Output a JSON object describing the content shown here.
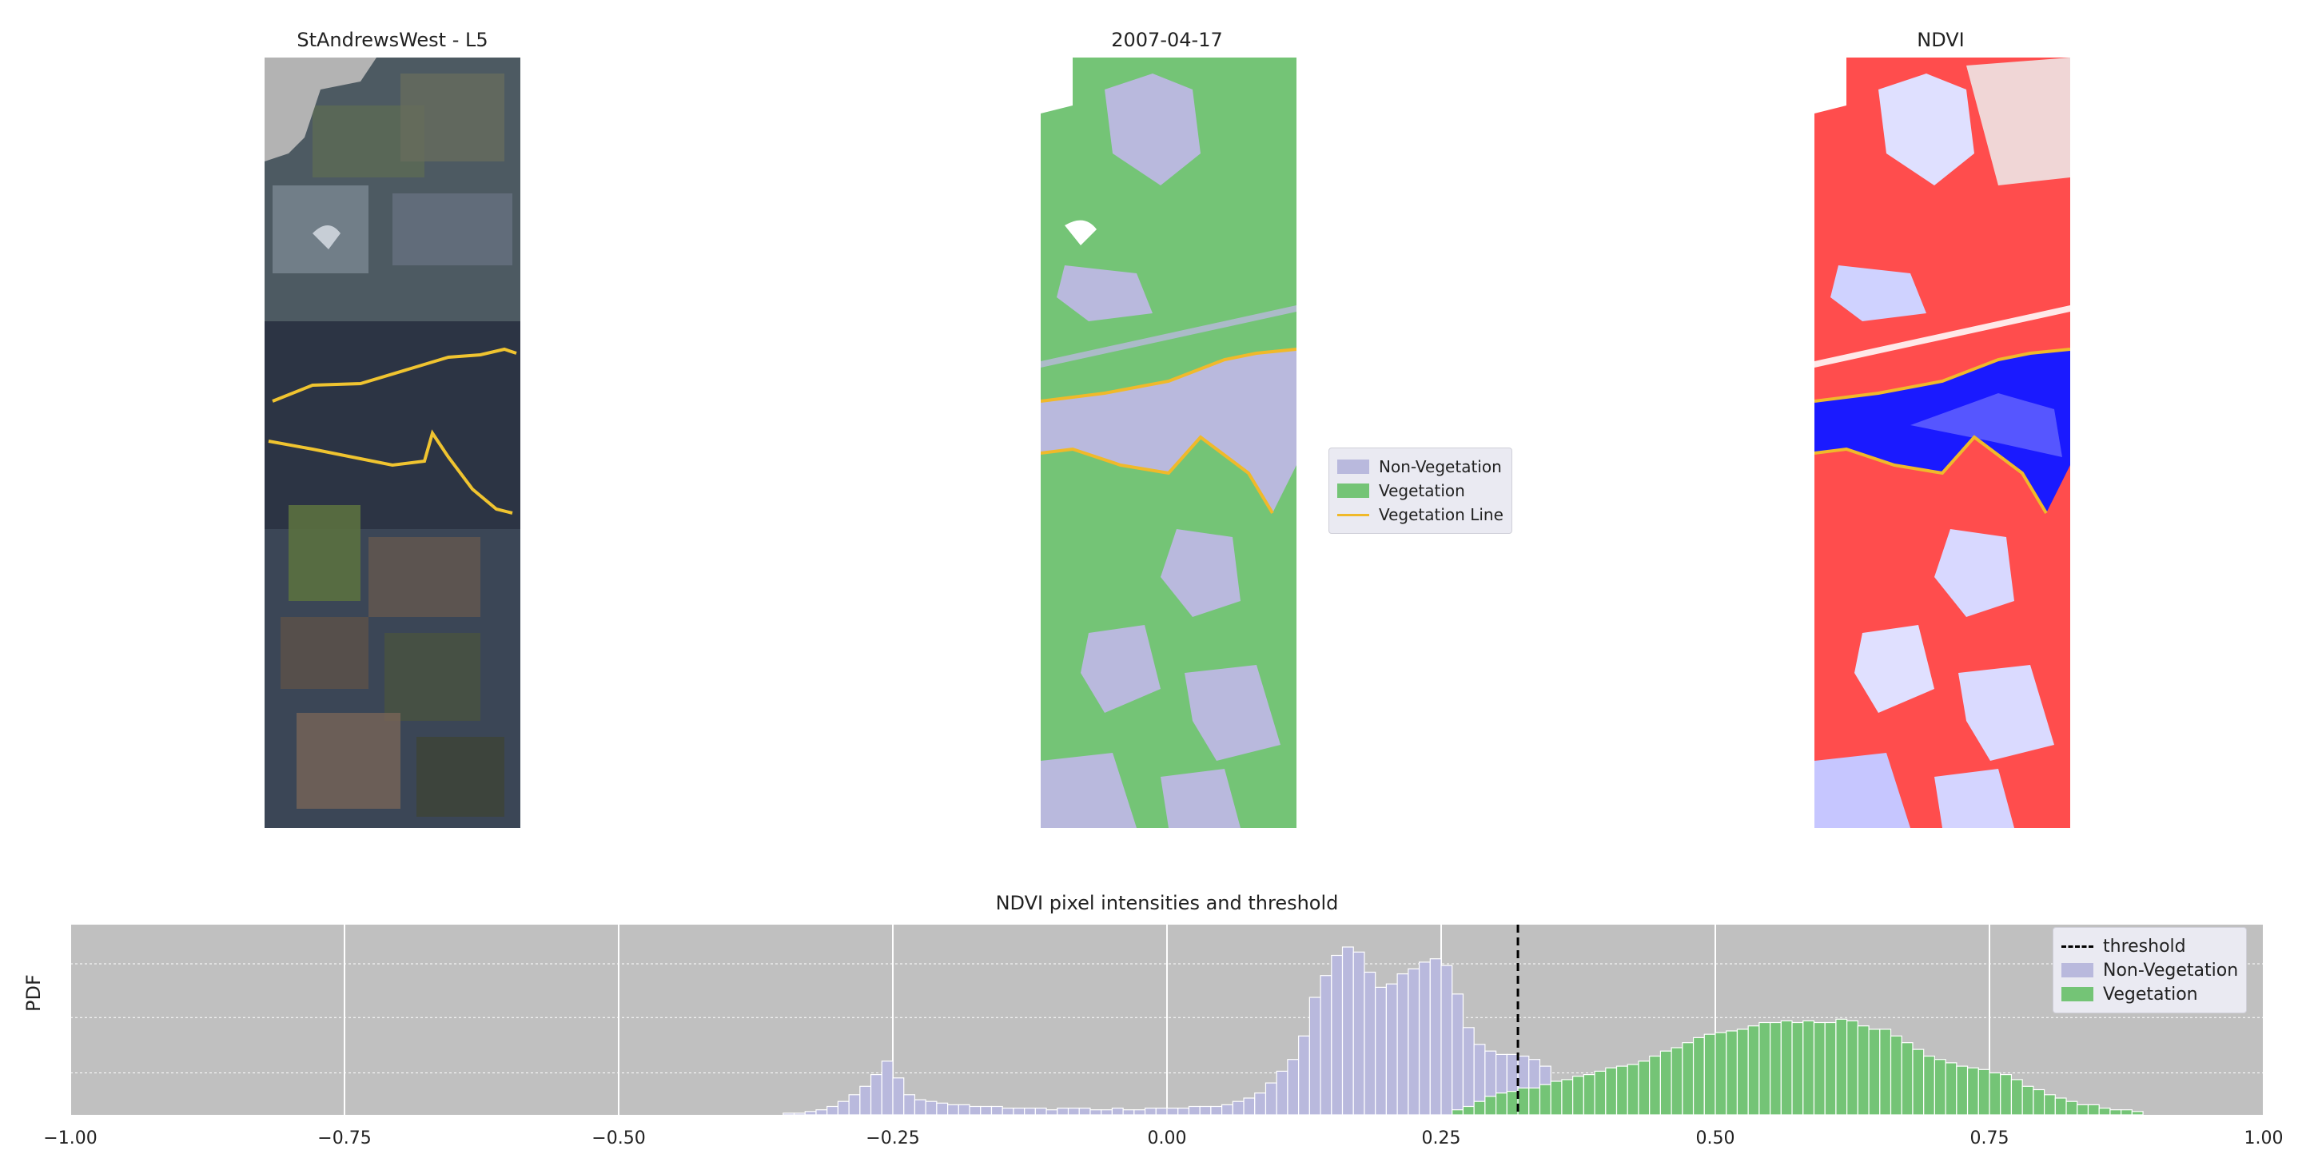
{
  "panels": {
    "rgb_title": "StAndrewsWest - L5",
    "class_title": "2007-04-17",
    "ndvi_title": "NDVI"
  },
  "class_legend": {
    "non_vegetation": "Non-Vegetation",
    "vegetation": "Vegetation",
    "vegetation_line": "Vegetation Line"
  },
  "colors": {
    "non_vegetation": "#b9b9dd",
    "vegetation": "#74c476",
    "vegetation_line": "#f0b92a",
    "threshold": "#000000",
    "hist_bg": "#c0c0c0"
  },
  "chart_data": {
    "type": "bar",
    "title": "NDVI pixel intensities and threshold",
    "xlabel": "",
    "ylabel": "PDF",
    "xlim": [
      -1.0,
      1.0
    ],
    "xticks": [
      "−1.00",
      "−0.75",
      "−0.50",
      "−0.25",
      "0.00",
      "0.25",
      "0.50",
      "0.75",
      "1.00"
    ],
    "threshold": 0.32,
    "grid": true,
    "legend_position": "top-right",
    "legend": [
      "threshold",
      "Non-Vegetation",
      "Vegetation"
    ],
    "series": [
      {
        "name": "Non-Vegetation",
        "bin_start": -0.35,
        "bin_width": 0.01,
        "values": [
          0.01,
          0.01,
          0.02,
          0.03,
          0.05,
          0.08,
          0.12,
          0.17,
          0.24,
          0.32,
          0.22,
          0.12,
          0.09,
          0.08,
          0.07,
          0.06,
          0.06,
          0.05,
          0.05,
          0.05,
          0.04,
          0.04,
          0.04,
          0.04,
          0.03,
          0.04,
          0.04,
          0.04,
          0.03,
          0.03,
          0.04,
          0.03,
          0.03,
          0.04,
          0.04,
          0.04,
          0.04,
          0.05,
          0.05,
          0.05,
          0.06,
          0.08,
          0.1,
          0.13,
          0.19,
          0.26,
          0.33,
          0.47,
          0.7,
          0.83,
          0.95,
          1.0,
          0.97,
          0.85,
          0.76,
          0.78,
          0.84,
          0.87,
          0.91,
          0.93,
          0.89,
          0.72,
          0.52,
          0.42,
          0.38,
          0.36,
          0.36,
          0.35,
          0.33,
          0.29,
          0.18,
          0.12,
          0.08,
          0.06,
          0.04,
          0.03,
          0.02,
          0.01,
          0.01,
          0.0,
          0.0,
          0.0,
          0.0,
          0.0,
          0.0,
          0.0,
          0.0,
          0.0,
          0.0,
          0.0,
          0.0,
          0.0,
          0.0,
          0.0,
          0.0,
          0.0,
          0.0,
          0.0,
          0.0,
          0.0,
          0.0,
          0.0,
          0.0,
          0.0,
          0.0,
          0.0,
          0.0,
          0.0,
          0.0,
          0.0,
          0.0,
          0.0,
          0.0,
          0.0,
          0.0,
          0.0,
          0.0
        ]
      },
      {
        "name": "Vegetation",
        "bin_start": 0.26,
        "bin_width": 0.01,
        "values": [
          0.03,
          0.05,
          0.08,
          0.11,
          0.13,
          0.14,
          0.16,
          0.16,
          0.18,
          0.2,
          0.21,
          0.23,
          0.24,
          0.26,
          0.28,
          0.29,
          0.3,
          0.32,
          0.35,
          0.38,
          0.4,
          0.43,
          0.46,
          0.48,
          0.49,
          0.5,
          0.51,
          0.53,
          0.55,
          0.55,
          0.56,
          0.55,
          0.56,
          0.55,
          0.55,
          0.57,
          0.56,
          0.53,
          0.51,
          0.51,
          0.47,
          0.43,
          0.39,
          0.35,
          0.33,
          0.31,
          0.29,
          0.28,
          0.27,
          0.25,
          0.24,
          0.21,
          0.17,
          0.15,
          0.12,
          0.1,
          0.08,
          0.06,
          0.06,
          0.04,
          0.03,
          0.03,
          0.02
        ]
      }
    ]
  }
}
